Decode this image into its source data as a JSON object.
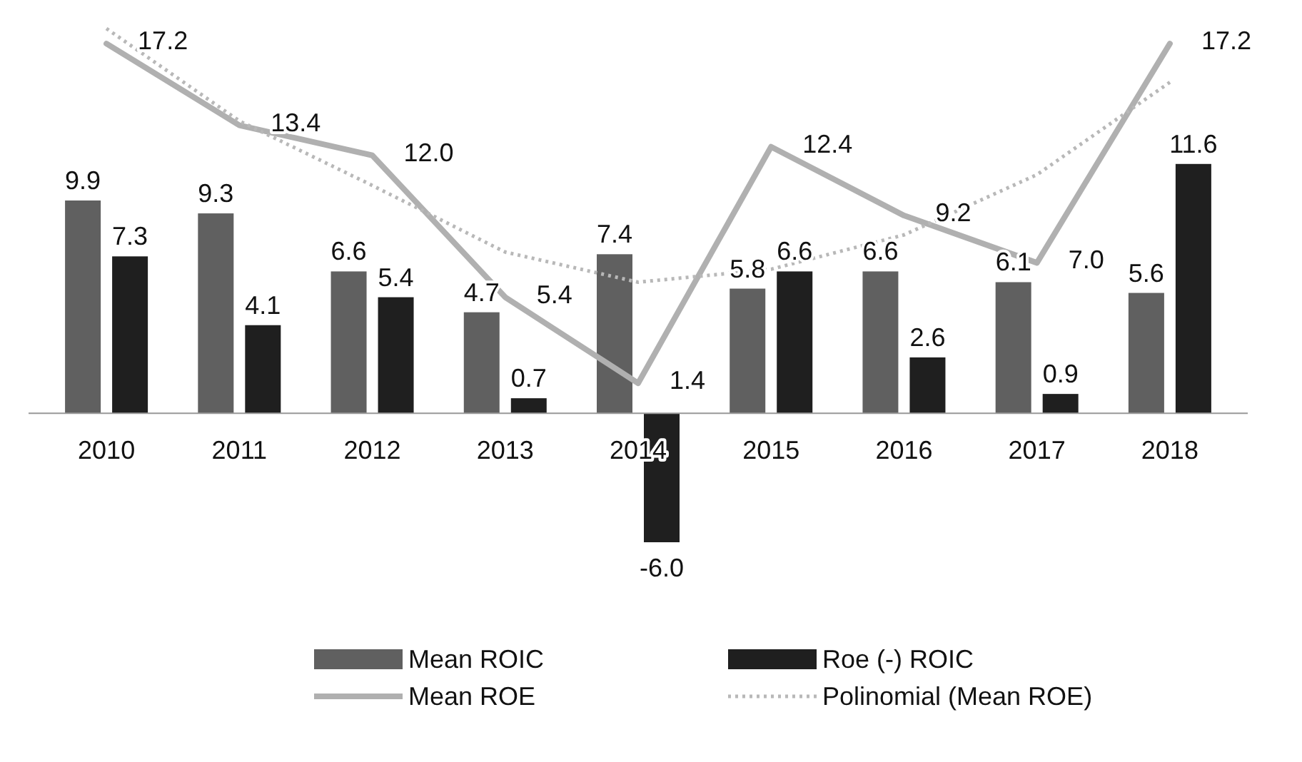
{
  "chart_data": {
    "type": "bar",
    "categories": [
      "2010",
      "2011",
      "2012",
      "2013",
      "2014",
      "2015",
      "2016",
      "2017",
      "2018"
    ],
    "series": [
      {
        "name": "Mean ROIC",
        "color": "#606060",
        "values": [
          9.9,
          9.3,
          6.6,
          4.7,
          7.4,
          5.8,
          6.6,
          6.1,
          5.6
        ],
        "value_labels": [
          "9.9",
          "9.3",
          "6.6",
          "4.7",
          "7.4",
          "5.8",
          "6.6",
          "6.1",
          "5.6"
        ]
      },
      {
        "name": "Roe (-) ROIC",
        "color": "#1f1f1f",
        "values": [
          7.3,
          4.1,
          5.4,
          0.7,
          -6.0,
          6.6,
          2.6,
          0.9,
          11.6
        ],
        "value_labels": [
          "7.3",
          "4.1",
          "5.4",
          "0.7",
          "-6.0",
          "6.6",
          "2.6",
          "0.9",
          "11.6"
        ]
      },
      {
        "name": "Mean ROE",
        "type": "line",
        "color": "#b0b0b0",
        "values": [
          17.2,
          13.4,
          12.0,
          5.4,
          1.4,
          12.4,
          9.2,
          7.0,
          17.2
        ],
        "value_labels": [
          "17.2",
          "13.4",
          "12.0",
          "5.4",
          "1.4",
          "12.4",
          "9.2",
          "7.0",
          "17.2"
        ]
      },
      {
        "name": "Polinomial (Mean ROE)",
        "type": "line",
        "line_style": "dotted",
        "color": "#b8b8b8",
        "values": [
          17.9,
          13.6,
          10.6,
          7.5,
          6.1,
          6.7,
          8.3,
          11.1,
          15.4
        ]
      }
    ],
    "legend": "bottom"
  }
}
